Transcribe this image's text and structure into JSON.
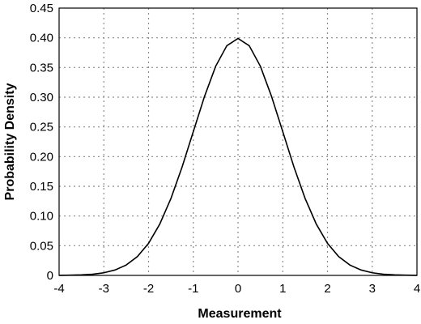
{
  "chart_data": {
    "type": "line",
    "xlabel": "Measurement",
    "ylabel": "Probability Density",
    "xlim": [
      -4,
      4
    ],
    "ylim": [
      0,
      0.45
    ],
    "x_ticks": [
      -4,
      -3,
      -2,
      -1,
      0,
      1,
      2,
      3,
      4
    ],
    "x_tick_labels": [
      "-4",
      "-3",
      "-2",
      "-1",
      "0",
      "1",
      "2",
      "3",
      "4"
    ],
    "y_ticks": [
      0,
      0.05,
      0.1,
      0.15,
      0.2,
      0.25,
      0.3,
      0.35,
      0.4,
      0.45
    ],
    "y_tick_labels": [
      "0",
      "0.05",
      "0.10",
      "0.15",
      "0.20",
      "0.25",
      "0.30",
      "0.35",
      "0.40",
      "0.45"
    ],
    "grid": true,
    "series": [
      {
        "x": [
          -4,
          -3.75,
          -3.5,
          -3.25,
          -3,
          -2.75,
          -2.5,
          -2.25,
          -2,
          -1.75,
          -1.5,
          -1.25,
          -1,
          -0.75,
          -0.5,
          -0.25,
          0,
          0.25,
          0.5,
          0.75,
          1,
          1.25,
          1.5,
          1.75,
          2,
          2.25,
          2.5,
          2.75,
          3,
          3.25,
          3.5,
          3.75,
          4
        ],
        "y": [
          0.0001,
          0.0004,
          0.0009,
          0.002,
          0.0044,
          0.0091,
          0.0175,
          0.0317,
          0.054,
          0.0863,
          0.1295,
          0.1826,
          0.242,
          0.3011,
          0.3521,
          0.3867,
          0.3989,
          0.3867,
          0.3521,
          0.3011,
          0.242,
          0.1826,
          0.1295,
          0.0863,
          0.054,
          0.0317,
          0.0175,
          0.0091,
          0.0044,
          0.002,
          0.0009,
          0.0004,
          0.0001
        ],
        "color": "#000000"
      }
    ]
  }
}
